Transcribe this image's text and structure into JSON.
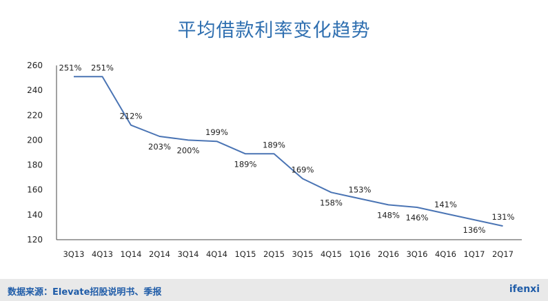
{
  "chart_data": {
    "type": "line",
    "title": "平均借款利率变化趋势",
    "categories": [
      "3Q13",
      "4Q13",
      "1Q14",
      "2Q14",
      "3Q14",
      "4Q14",
      "1Q15",
      "2Q15",
      "3Q15",
      "4Q15",
      "1Q16",
      "2Q16",
      "3Q16",
      "4Q16",
      "1Q17",
      "2Q17"
    ],
    "series": [
      {
        "values": [
          251,
          251,
          212,
          203,
          200,
          199,
          189,
          189,
          169,
          158,
          153,
          148,
          146,
          141,
          136,
          131
        ]
      }
    ],
    "data_labels": [
      "251%",
      "251%",
      "212%",
      "203%",
      "200%",
      "199%",
      "189%",
      "189%",
      "169%",
      "158%",
      "153%",
      "148%",
      "146%",
      "141%",
      "136%",
      "131%"
    ],
    "y_ticks": [
      120,
      140,
      160,
      180,
      200,
      220,
      240,
      260
    ],
    "ylim": [
      120,
      260
    ],
    "grid": false,
    "line_color": "#4a74b4"
  },
  "footer": {
    "source": "数据来源：Elevate招股说明书、季报",
    "logo": "ifenxi"
  }
}
